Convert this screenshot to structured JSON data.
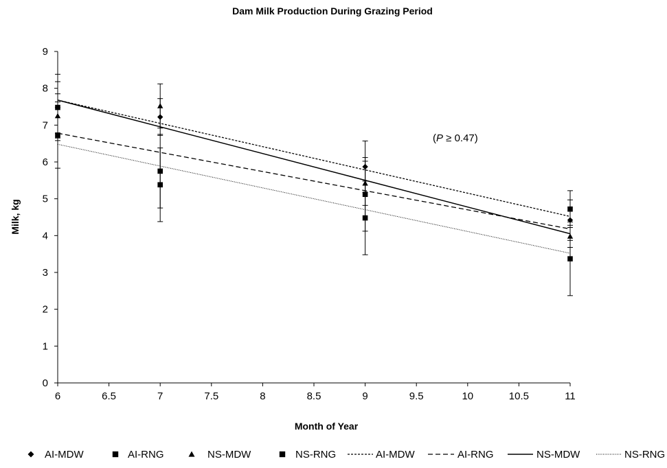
{
  "chart_data": {
    "type": "scatter",
    "title": "Dam Milk Production During Grazing Period",
    "xlabel": "Month of Year",
    "ylabel": "Milk, kg",
    "xlim": [
      6,
      11
    ],
    "ylim": [
      0,
      9
    ],
    "xticks": [
      6,
      6.5,
      7,
      7.5,
      8,
      8.5,
      9,
      9.5,
      10,
      10.5,
      11
    ],
    "xtick_labels": [
      "6",
      "6.5",
      "7",
      "7.5",
      "8",
      "8.5",
      "9",
      "9.5",
      "10",
      "10.5",
      "11"
    ],
    "yticks": [
      0,
      1,
      2,
      3,
      4,
      5,
      6,
      7,
      8,
      9
    ],
    "ytick_labels": [
      "0",
      "1",
      "2",
      "3",
      "4",
      "5",
      "6",
      "7",
      "8",
      "9"
    ],
    "grid": false,
    "legend_position": "bottom",
    "annotation": {
      "prefix": "(",
      "italic": "P",
      "suffix": " ≥ 0.47)"
    },
    "series": [
      {
        "name": "AI-MDW",
        "marker": "diamond",
        "points": [
          {
            "x": 6,
            "y": 7.48,
            "err": 0.7
          },
          {
            "x": 7,
            "y": 7.22,
            "err": 0.5
          },
          {
            "x": 9,
            "y": 5.87,
            "err": 0.7
          },
          {
            "x": 11,
            "y": 4.42,
            "err": 0.55
          }
        ]
      },
      {
        "name": "AI-RNG",
        "marker": "square",
        "points": [
          {
            "x": 6,
            "y": 6.73,
            "err": 0.9
          },
          {
            "x": 7,
            "y": 5.75,
            "err": 1.0
          },
          {
            "x": 9,
            "y": 5.12,
            "err": 1.0
          },
          {
            "x": 11,
            "y": 4.72,
            "err": 0.5
          }
        ]
      },
      {
        "name": "NS-MDW",
        "marker": "triangle",
        "points": [
          {
            "x": 6,
            "y": 7.25,
            "err": 0.6
          },
          {
            "x": 7,
            "y": 7.52,
            "err": 0.6
          },
          {
            "x": 9,
            "y": 5.42,
            "err": 0.6
          },
          {
            "x": 11,
            "y": 3.98,
            "err": 0.3
          }
        ]
      },
      {
        "name": "NS-RNG",
        "marker": "square",
        "points": [
          {
            "x": 6,
            "y": 7.48,
            "err": 0.9
          },
          {
            "x": 7,
            "y": 5.38,
            "err": 1.0
          },
          {
            "x": 9,
            "y": 4.48,
            "err": 1.0
          },
          {
            "x": 11,
            "y": 3.37,
            "err": 1.0
          }
        ]
      }
    ],
    "trendlines": [
      {
        "name": "AI-MDW",
        "style": "short-dash",
        "x": [
          6,
          11
        ],
        "y": [
          7.68,
          4.52
        ]
      },
      {
        "name": "AI-RNG",
        "style": "long-dash",
        "x": [
          6,
          11
        ],
        "y": [
          6.78,
          4.18
        ]
      },
      {
        "name": "NS-MDW",
        "style": "solid",
        "x": [
          6,
          11
        ],
        "y": [
          7.68,
          4.05
        ]
      },
      {
        "name": "NS-RNG",
        "style": "dotted",
        "x": [
          6,
          11
        ],
        "y": [
          6.48,
          3.52
        ]
      }
    ]
  }
}
